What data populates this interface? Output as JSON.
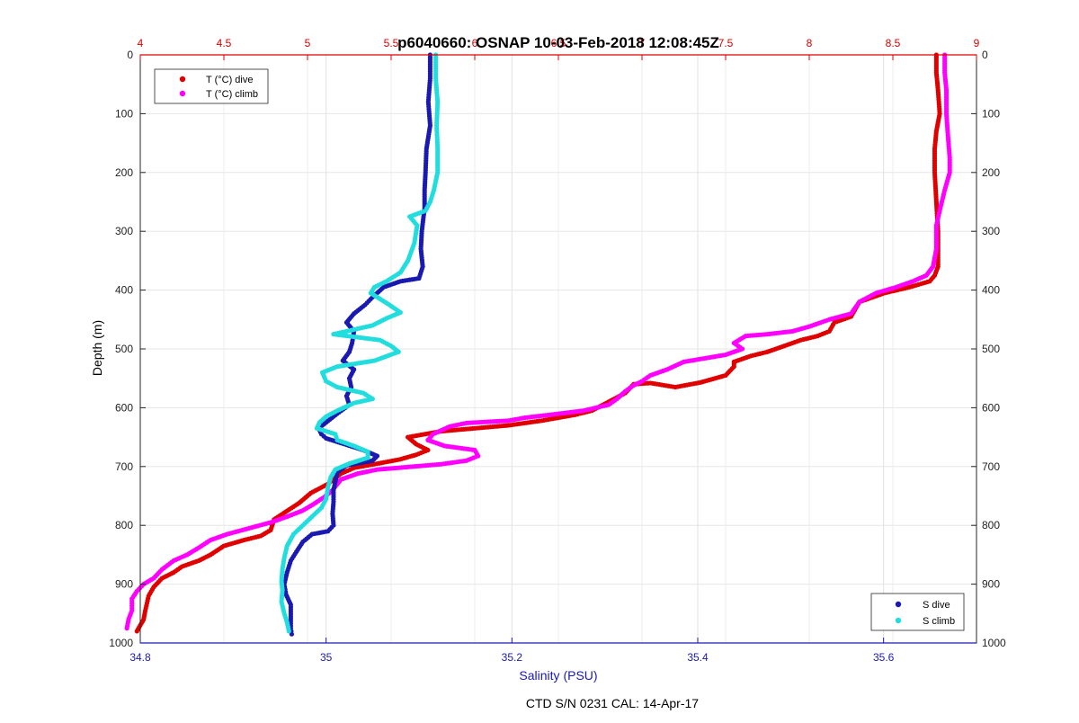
{
  "chart_data": {
    "type": "scatter",
    "title": "p6040660: OSNAP 10-03-Feb-2018 12:08:45Z",
    "footer": "CTD S/N 0231  CAL: 14-Apr-17",
    "ylabel": "Depth (m)",
    "xlabel_bottom": "Salinity (PSU)",
    "xlabel_top": "",
    "ylim": [
      0,
      1000
    ],
    "y_reversed": true,
    "y_ticks": [
      "0",
      "100",
      "200",
      "300",
      "400",
      "500",
      "600",
      "700",
      "800",
      "900",
      "1000"
    ],
    "x_bottom": {
      "range": [
        34.8,
        35.7
      ],
      "ticks": [
        "34.8",
        "35",
        "35.2",
        "35.4",
        "35.6"
      ],
      "color": "#1a1ab0"
    },
    "x_top": {
      "range": [
        4,
        9
      ],
      "ticks": [
        "4",
        "4.5",
        "5",
        "5.5",
        "6",
        "6.5",
        "7",
        "7.5",
        "8",
        "8.5",
        "9"
      ],
      "color": "#e00000"
    },
    "grid": true,
    "legend_top": {
      "placement": "top-left",
      "entries": [
        "T (°C) dive",
        "T (°C) climb"
      ]
    },
    "legend_bottom": {
      "placement": "bottom-right",
      "entries": [
        "S dive",
        "S climb"
      ]
    },
    "series": [
      {
        "name": "T (°C) dive",
        "axis": "top",
        "color": "#e00000",
        "points": [
          [
            8.76,
            0
          ],
          [
            8.76,
            30
          ],
          [
            8.77,
            60
          ],
          [
            8.78,
            100
          ],
          [
            8.76,
            130
          ],
          [
            8.75,
            160
          ],
          [
            8.75,
            200
          ],
          [
            8.76,
            250
          ],
          [
            8.77,
            300
          ],
          [
            8.77,
            330
          ],
          [
            8.77,
            360
          ],
          [
            8.75,
            375
          ],
          [
            8.72,
            385
          ],
          [
            8.6,
            395
          ],
          [
            8.45,
            405
          ],
          [
            8.3,
            420
          ],
          [
            8.25,
            445
          ],
          [
            8.15,
            455
          ],
          [
            8.12,
            470
          ],
          [
            8.05,
            478
          ],
          [
            7.95,
            485
          ],
          [
            7.85,
            495
          ],
          [
            7.75,
            505
          ],
          [
            7.65,
            512
          ],
          [
            7.55,
            522
          ],
          [
            7.55,
            530
          ],
          [
            7.5,
            545
          ],
          [
            7.35,
            557
          ],
          [
            7.2,
            565
          ],
          [
            7.05,
            558
          ],
          [
            6.95,
            560
          ],
          [
            6.9,
            575
          ],
          [
            6.8,
            590
          ],
          [
            6.7,
            605
          ],
          [
            6.6,
            612
          ],
          [
            6.4,
            622
          ],
          [
            6.2,
            630
          ],
          [
            6.0,
            635
          ],
          [
            5.8,
            640
          ],
          [
            5.6,
            650
          ],
          [
            5.65,
            662
          ],
          [
            5.72,
            672
          ],
          [
            5.65,
            680
          ],
          [
            5.55,
            688
          ],
          [
            5.4,
            696
          ],
          [
            5.28,
            702
          ],
          [
            5.2,
            712
          ],
          [
            5.12,
            730
          ],
          [
            5.02,
            745
          ],
          [
            4.95,
            762
          ],
          [
            4.88,
            775
          ],
          [
            4.8,
            790
          ],
          [
            4.78,
            808
          ],
          [
            4.72,
            818
          ],
          [
            4.62,
            825
          ],
          [
            4.5,
            835
          ],
          [
            4.42,
            850
          ],
          [
            4.35,
            860
          ],
          [
            4.25,
            870
          ],
          [
            4.2,
            880
          ],
          [
            4.13,
            890
          ],
          [
            4.08,
            905
          ],
          [
            4.05,
            920
          ],
          [
            4.03,
            945
          ],
          [
            4.02,
            960
          ],
          [
            3.98,
            980
          ]
        ]
      },
      {
        "name": "T (°C) climb",
        "axis": "top",
        "color": "#ff00ff",
        "points": [
          [
            8.81,
            0
          ],
          [
            8.81,
            30
          ],
          [
            8.82,
            60
          ],
          [
            8.82,
            100
          ],
          [
            8.83,
            140
          ],
          [
            8.84,
            175
          ],
          [
            8.84,
            200
          ],
          [
            8.81,
            230
          ],
          [
            8.78,
            265
          ],
          [
            8.76,
            290
          ],
          [
            8.76,
            330
          ],
          [
            8.74,
            360
          ],
          [
            8.7,
            375
          ],
          [
            8.62,
            385
          ],
          [
            8.52,
            395
          ],
          [
            8.4,
            405
          ],
          [
            8.3,
            420
          ],
          [
            8.25,
            440
          ],
          [
            8.12,
            450
          ],
          [
            8.0,
            462
          ],
          [
            7.9,
            470
          ],
          [
            7.75,
            475
          ],
          [
            7.62,
            478
          ],
          [
            7.55,
            490
          ],
          [
            7.6,
            500
          ],
          [
            7.5,
            510
          ],
          [
            7.25,
            522
          ],
          [
            7.15,
            535
          ],
          [
            7.05,
            545
          ],
          [
            7.0,
            555
          ],
          [
            6.95,
            562
          ],
          [
            6.9,
            572
          ],
          [
            6.85,
            585
          ],
          [
            6.8,
            595
          ],
          [
            6.65,
            605
          ],
          [
            6.45,
            612
          ],
          [
            6.3,
            617
          ],
          [
            6.2,
            622
          ],
          [
            5.95,
            626
          ],
          [
            5.85,
            632
          ],
          [
            5.75,
            645
          ],
          [
            5.72,
            655
          ],
          [
            5.82,
            665
          ],
          [
            6.0,
            672
          ],
          [
            6.02,
            682
          ],
          [
            5.95,
            690
          ],
          [
            5.8,
            696
          ],
          [
            5.55,
            702
          ],
          [
            5.42,
            705
          ],
          [
            5.3,
            712
          ],
          [
            5.2,
            722
          ],
          [
            5.15,
            740
          ],
          [
            5.1,
            752
          ],
          [
            5.03,
            765
          ],
          [
            4.97,
            775
          ],
          [
            4.88,
            785
          ],
          [
            4.78,
            795
          ],
          [
            4.65,
            805
          ],
          [
            4.52,
            815
          ],
          [
            4.42,
            825
          ],
          [
            4.35,
            838
          ],
          [
            4.28,
            850
          ],
          [
            4.2,
            860
          ],
          [
            4.13,
            875
          ],
          [
            4.08,
            890
          ],
          [
            4.02,
            900
          ],
          [
            3.98,
            912
          ],
          [
            3.95,
            925
          ],
          [
            3.95,
            945
          ],
          [
            3.93,
            960
          ],
          [
            3.92,
            975
          ]
        ]
      },
      {
        "name": "S dive",
        "axis": "bottom",
        "color": "#1a1ab0",
        "points": [
          [
            35.112,
            0
          ],
          [
            35.112,
            40
          ],
          [
            35.11,
            80
          ],
          [
            35.112,
            120
          ],
          [
            35.108,
            160
          ],
          [
            35.107,
            200
          ],
          [
            35.106,
            230
          ],
          [
            35.106,
            260
          ],
          [
            35.103,
            300
          ],
          [
            35.102,
            330
          ],
          [
            35.104,
            360
          ],
          [
            35.1,
            380
          ],
          [
            35.08,
            385
          ],
          [
            35.062,
            395
          ],
          [
            35.05,
            412
          ],
          [
            35.042,
            425
          ],
          [
            35.03,
            440
          ],
          [
            35.022,
            455
          ],
          [
            35.03,
            470
          ],
          [
            35.028,
            490
          ],
          [
            35.025,
            505
          ],
          [
            35.018,
            520
          ],
          [
            35.03,
            535
          ],
          [
            35.025,
            550
          ],
          [
            35.027,
            565
          ],
          [
            35.022,
            580
          ],
          [
            35.025,
            595
          ],
          [
            35.012,
            610
          ],
          [
            35.0,
            625
          ],
          [
            34.992,
            635
          ],
          [
            34.995,
            645
          ],
          [
            35.0,
            652
          ],
          [
            35.02,
            662
          ],
          [
            35.04,
            672
          ],
          [
            35.055,
            682
          ],
          [
            35.05,
            690
          ],
          [
            35.022,
            698
          ],
          [
            35.012,
            710
          ],
          [
            35.01,
            725
          ],
          [
            35.008,
            740
          ],
          [
            35.008,
            760
          ],
          [
            35.007,
            780
          ],
          [
            35.008,
            800
          ],
          [
            35.002,
            810
          ],
          [
            34.985,
            815
          ],
          [
            34.975,
            828
          ],
          [
            34.968,
            845
          ],
          [
            34.962,
            860
          ],
          [
            34.958,
            880
          ],
          [
            34.955,
            900
          ],
          [
            34.957,
            918
          ],
          [
            34.962,
            935
          ],
          [
            34.962,
            955
          ],
          [
            34.962,
            975
          ],
          [
            34.963,
            985
          ]
        ]
      },
      {
        "name": "S climb",
        "axis": "bottom",
        "color": "#22dddd",
        "points": [
          [
            35.118,
            0
          ],
          [
            35.118,
            40
          ],
          [
            35.12,
            80
          ],
          [
            35.119,
            120
          ],
          [
            35.12,
            160
          ],
          [
            35.12,
            200
          ],
          [
            35.116,
            230
          ],
          [
            35.112,
            250
          ],
          [
            35.107,
            265
          ],
          [
            35.09,
            275
          ],
          [
            35.098,
            290
          ],
          [
            35.095,
            320
          ],
          [
            35.088,
            350
          ],
          [
            35.08,
            370
          ],
          [
            35.065,
            385
          ],
          [
            35.052,
            395
          ],
          [
            35.048,
            405
          ],
          [
            35.058,
            415
          ],
          [
            35.068,
            425
          ],
          [
            35.08,
            438
          ],
          [
            35.065,
            448
          ],
          [
            35.05,
            460
          ],
          [
            35.008,
            475
          ],
          [
            35.058,
            485
          ],
          [
            35.07,
            495
          ],
          [
            35.078,
            505
          ],
          [
            35.052,
            520
          ],
          [
            35.012,
            530
          ],
          [
            34.996,
            540
          ],
          [
            35.0,
            555
          ],
          [
            35.012,
            565
          ],
          [
            35.04,
            575
          ],
          [
            35.05,
            585
          ],
          [
            35.03,
            592
          ],
          [
            35.012,
            605
          ],
          [
            35.0,
            615
          ],
          [
            34.993,
            625
          ],
          [
            34.99,
            635
          ],
          [
            35.01,
            645
          ],
          [
            35.012,
            655
          ],
          [
            35.03,
            665
          ],
          [
            35.045,
            675
          ],
          [
            35.045,
            685
          ],
          [
            35.025,
            695
          ],
          [
            35.01,
            705
          ],
          [
            35.005,
            718
          ],
          [
            35.002,
            735
          ],
          [
            35.0,
            755
          ],
          [
            34.995,
            770
          ],
          [
            34.985,
            785
          ],
          [
            34.975,
            800
          ],
          [
            34.965,
            815
          ],
          [
            34.958,
            835
          ],
          [
            34.955,
            855
          ],
          [
            34.953,
            875
          ],
          [
            34.952,
            895
          ],
          [
            34.953,
            910
          ],
          [
            34.952,
            930
          ],
          [
            34.955,
            950
          ],
          [
            34.958,
            965
          ],
          [
            34.96,
            980
          ]
        ]
      }
    ]
  }
}
